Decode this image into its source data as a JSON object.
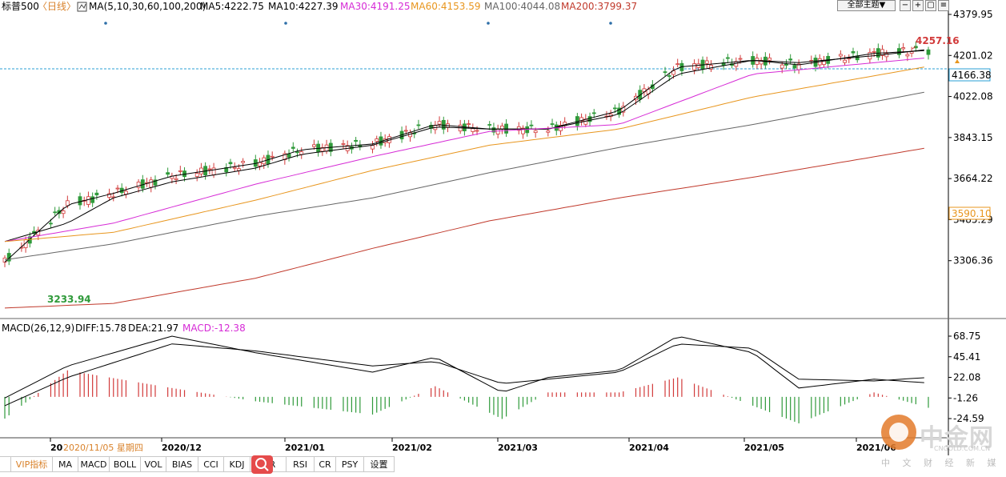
{
  "header": {
    "symbol": "标普500",
    "period": "〈日线〉",
    "ma_params": "MA(5,10,30,60,100,200)",
    "ma5": "MA5:4222.75",
    "ma10": "MA10:4227.39",
    "ma30": "MA30:4191.25",
    "ma60": "MA60:4153.59",
    "ma100": "MA100:4044.08",
    "ma200": "MA200:3799.37",
    "theme_button": "全部主题▼"
  },
  "macd_header": {
    "params": "MACD(26,12,9)",
    "diff": "DIFF:15.78",
    "dea": "DEA:21.97",
    "macd": "MACD:-12.38"
  },
  "colors": {
    "up": "#d23a3a",
    "down": "#2f9a3a",
    "ma5": "#000000",
    "ma10": "#000000",
    "ma30": "#d62bd6",
    "ma60": "#e8961e",
    "ma100": "#666666",
    "ma200": "#c0392b"
  },
  "chart_data": [
    {
      "type": "line",
      "series": [
        {
          "name": "MA5",
          "x": [
            "2020-11-05",
            "2020-11-20",
            "2020-12-01",
            "2020-12-15",
            "2021-01-04",
            "2021-01-15",
            "2021-02-01",
            "2021-02-16",
            "2021-03-01",
            "2021-03-15",
            "2021-04-01",
            "2021-04-15",
            "2021-05-03",
            "2021-05-14",
            "2021-06-01",
            "2021-06-14"
          ],
          "values": [
            3300,
            3550,
            3600,
            3675,
            3730,
            3790,
            3815,
            3900,
            3880,
            3880,
            3960,
            4150,
            4180,
            4160,
            4210,
            4222.75
          ]
        },
        {
          "name": "MA10",
          "x": [
            "2020-11-05",
            "2020-11-20",
            "2020-12-01",
            "2020-12-15",
            "2021-01-04",
            "2021-01-15",
            "2021-02-01",
            "2021-02-16",
            "2021-03-01",
            "2021-03-15",
            "2021-04-01",
            "2021-04-15",
            "2021-05-03",
            "2021-05-14",
            "2021-06-01",
            "2021-06-14"
          ],
          "values": [
            3390,
            3470,
            3580,
            3650,
            3710,
            3770,
            3810,
            3890,
            3880,
            3880,
            3945,
            4120,
            4180,
            4170,
            4200,
            4227.39
          ]
        },
        {
          "name": "MA30",
          "x": [
            "2020-11-05",
            "2020-12-01",
            "2021-01-04",
            "2021-02-01",
            "2021-03-01",
            "2021-04-01",
            "2021-05-03",
            "2021-06-14"
          ],
          "values": [
            3390,
            3470,
            3640,
            3760,
            3870,
            3900,
            4120,
            4191.25
          ]
        },
        {
          "name": "MA60",
          "x": [
            "2020-11-05",
            "2020-12-01",
            "2021-01-04",
            "2021-02-01",
            "2021-03-01",
            "2021-04-01",
            "2021-05-03",
            "2021-06-14"
          ],
          "values": [
            3390,
            3430,
            3570,
            3700,
            3810,
            3880,
            4020,
            4153.59
          ]
        },
        {
          "name": "MA100",
          "x": [
            "2020-11-05",
            "2020-12-01",
            "2021-01-04",
            "2021-02-01",
            "2021-03-01",
            "2021-04-01",
            "2021-05-03",
            "2021-06-14"
          ],
          "values": [
            3310,
            3380,
            3500,
            3580,
            3690,
            3800,
            3900,
            4044.08
          ]
        },
        {
          "name": "MA200",
          "x": [
            "2020-11-05",
            "2020-12-01",
            "2021-01-04",
            "2021-02-01",
            "2021-03-01",
            "2021-04-01",
            "2021-05-03",
            "2021-06-14"
          ],
          "values": [
            3100,
            3120,
            3230,
            3360,
            3480,
            3580,
            3670,
            3799.37
          ]
        }
      ],
      "y_ticks": [
        "4379.95",
        "4201.02",
        "4022.08",
        "3843.15",
        "3664.22",
        "3485.29",
        "3306.36"
      ],
      "ylim": [
        3127.43,
        4379.95
      ],
      "labels": {
        "high": "4257.16",
        "low": "3233.94",
        "current": "4166.38",
        "marker": "3590.10"
      }
    },
    {
      "type": "line",
      "series": [
        {
          "name": "DIFF",
          "x": [
            "2020-11-05",
            "2020-11-20",
            "2020-12-15",
            "2021-01-04",
            "2021-02-01",
            "2021-02-16",
            "2021-03-04",
            "2021-03-15",
            "2021-04-01",
            "2021-04-15",
            "2021-05-03",
            "2021-05-14",
            "2021-06-01",
            "2021-06-14"
          ],
          "values": [
            -1.26,
            35,
            68.75,
            50,
            28,
            45,
            5,
            22,
            30,
            68.75,
            50,
            10,
            20,
            15.78
          ]
        },
        {
          "name": "DEA",
          "x": [
            "2020-11-05",
            "2020-11-20",
            "2020-12-15",
            "2021-01-04",
            "2021-02-01",
            "2021-02-16",
            "2021-03-04",
            "2021-03-15",
            "2021-04-01",
            "2021-04-15",
            "2021-05-03",
            "2021-05-14",
            "2021-06-01",
            "2021-06-14"
          ],
          "values": [
            -10,
            22,
            60,
            52,
            35,
            40,
            15,
            20,
            28,
            60,
            55,
            20,
            18,
            21.97
          ]
        },
        {
          "name": "MACD",
          "x": [
            "2020-11-05",
            "2020-11-20",
            "2020-12-15",
            "2021-01-04",
            "2021-02-01",
            "2021-02-16",
            "2021-03-04",
            "2021-03-15",
            "2021-04-01",
            "2021-04-15",
            "2021-05-03",
            "2021-05-14",
            "2021-06-01",
            "2021-06-14"
          ],
          "values": [
            -24.59,
            30,
            10,
            -5,
            -20,
            12,
            -25,
            5,
            5,
            22,
            -10,
            -30,
            5,
            -12.38
          ]
        }
      ],
      "y_ticks": [
        "68.75",
        "45.41",
        "22.08",
        "-1.26",
        "-24.59"
      ],
      "ylim": [
        -24.59,
        68.75
      ]
    }
  ],
  "x_axis": {
    "labels": [
      "20",
      "2020/12",
      "2021/01",
      "2021/02",
      "2021/03",
      "2021/04",
      "2021/05",
      "2021/06"
    ],
    "cursor_label": "2020/11/05 星期四"
  },
  "tabs": [
    "VIP指标",
    "MA",
    "MACD",
    "BOLL",
    "VOL",
    "BIAS",
    "CCI",
    "KDJ",
    "WR",
    "RSI",
    "CR",
    "PSY",
    "设置"
  ],
  "watermark": {
    "name": "中金网",
    "sub": "中 文 财 经 新 媒 体",
    "url": "CNGOLD.COM.CN"
  }
}
